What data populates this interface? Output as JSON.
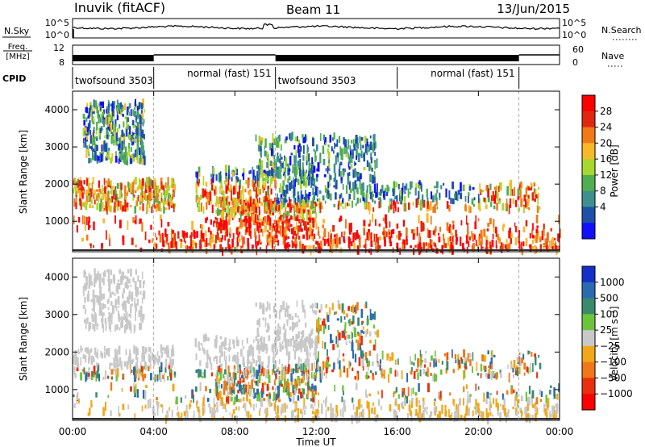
{
  "header": {
    "station": "Inuvik (fitACF)",
    "beam": "Beam 11",
    "date": "13/Jun/2015"
  },
  "top_panels": {
    "nsky_label": "N.Sky",
    "nsky_ticks": [
      "10^5",
      "10^0"
    ],
    "nsearch_label": "N.Search",
    "nsearch_ticks": [
      "10^5",
      "10^0"
    ],
    "freq_label_1": "Freq.",
    "freq_label_2": "[MHz]",
    "freq_ticks": [
      "12",
      "8"
    ],
    "nave_label": "Nave",
    "nave_ticks": [
      "60",
      "0"
    ],
    "cpid_label": "CPID",
    "cpid_segments": [
      {
        "name": "twofsound 3503",
        "start_h": 0.0,
        "end_h": 4.0
      },
      {
        "name": "normal (fast) 151",
        "start_h": 4.0,
        "end_h": 10.0
      },
      {
        "name": "twofsound 3503",
        "start_h": 10.0,
        "end_h": 16.0
      },
      {
        "name": "normal (fast) 151",
        "start_h": 16.0,
        "end_h": 22.0
      }
    ]
  },
  "chart_data": [
    {
      "type": "heatmap",
      "name": "power",
      "ylabel": "Slant Range [km]",
      "ylim": [
        180,
        4500
      ],
      "yticks": [
        "1000",
        "2000",
        "3000",
        "4000"
      ],
      "xlim": [
        0,
        24
      ],
      "colorbar_label": "Power [dB]",
      "colorbar_ticks": [
        "4",
        "8",
        "12",
        "16",
        "20",
        "24",
        "28"
      ],
      "colors": [
        "#1010ff",
        "#1f50a8",
        "#3f8f8f",
        "#4fae50",
        "#a8d830",
        "#f8b828",
        "#f07a18",
        "#e02810",
        "#ff0000"
      ]
    },
    {
      "type": "heatmap",
      "name": "velocity",
      "ylabel": "Slant Range [km]",
      "ylim": [
        180,
        4500
      ],
      "yticks": [
        "1000",
        "2000",
        "3000",
        "4000"
      ],
      "xlim": [
        0,
        24
      ],
      "colorbar_label": "Velocity [m s⁻¹]",
      "colorbar_ticks": [
        "1000",
        "500",
        "100",
        "25",
        "−25",
        "−100",
        "−500",
        "−1000"
      ],
      "colors": [
        "#1430c8",
        "#2c6ab0",
        "#3a8a6c",
        "#6cc43c",
        "#c8c8c8",
        "#f0a818",
        "#f07818",
        "#e83010",
        "#ff0000"
      ]
    }
  ],
  "time_axis": {
    "ticks": [
      "00:00",
      "04:00",
      "08:00",
      "12:00",
      "16:00",
      "20:00",
      "00:00"
    ],
    "label": "Time UT"
  }
}
